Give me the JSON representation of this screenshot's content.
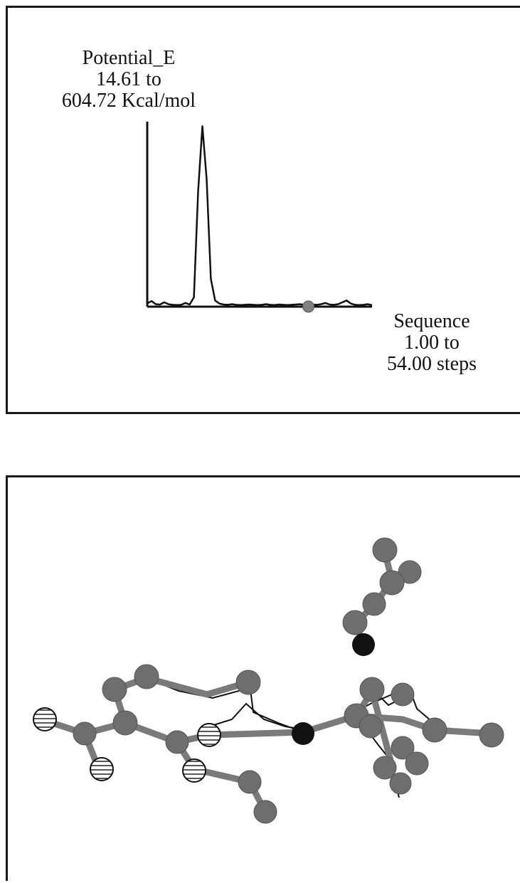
{
  "chart_data": {
    "type": "line",
    "y_axis": {
      "name": "Potential_E",
      "range_text": "14.61 to",
      "range_text_2": "604.72 Kcal/mol",
      "ylim": [
        14.61,
        604.72
      ],
      "unit": "Kcal/mol"
    },
    "x_axis": {
      "name": "Sequence",
      "range_text": "1.00 to",
      "range_text_2": "54.00 steps",
      "xlim": [
        1.0,
        54.0
      ],
      "unit": "steps"
    },
    "series": [
      {
        "x": [
          1,
          2,
          3,
          4,
          5,
          6,
          7,
          8,
          9,
          10,
          11,
          12,
          13,
          14,
          15,
          16,
          17,
          18,
          19,
          20,
          21,
          22,
          23,
          24,
          25,
          26,
          27,
          28,
          29,
          30,
          31,
          32,
          33,
          34,
          35,
          36,
          37,
          38,
          39,
          40,
          41,
          42,
          43,
          44,
          45,
          46,
          47,
          48,
          49,
          50,
          51,
          52,
          53,
          54
        ],
        "y": [
          20,
          28,
          18,
          17,
          24,
          18,
          16,
          15,
          16,
          22,
          17,
          40,
          380,
          590,
          420,
          100,
          30,
          20,
          17,
          16,
          18,
          16,
          15,
          16,
          17,
          16,
          15,
          16,
          18,
          16,
          15,
          17,
          16,
          15,
          16,
          17,
          18,
          16,
          15,
          17,
          16,
          18,
          22,
          17,
          16,
          18,
          24,
          30,
          20,
          16,
          15,
          16,
          18,
          15
        ]
      }
    ],
    "current_step": 39,
    "grid": false
  },
  "colors": {
    "frame": "#1a1a1a",
    "atom_carbon": "#6e6e6e",
    "atom_nitrogen": "#111111",
    "atom_oxygen_fill": "#ffffff",
    "bond": "#7a7a7a",
    "marker": "#808080"
  }
}
